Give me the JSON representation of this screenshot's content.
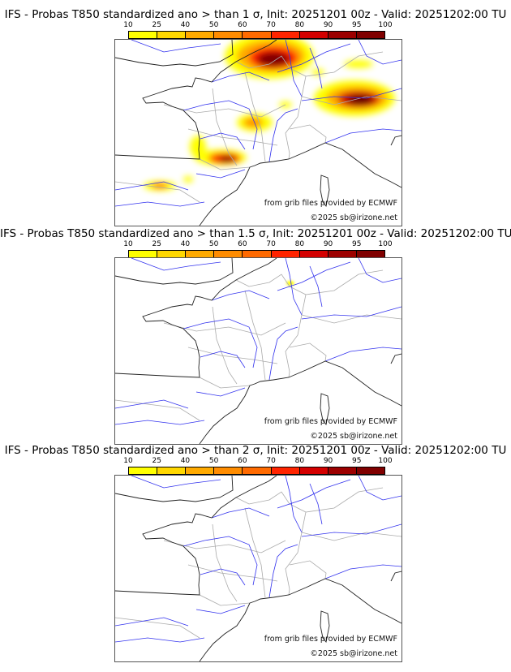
{
  "colorbar": {
    "ticks": [
      "10",
      "25",
      "40",
      "50",
      "60",
      "70",
      "80",
      "90",
      "95",
      "100"
    ],
    "colors": [
      "#ffff00",
      "#ffd700",
      "#ffaa00",
      "#ff8c00",
      "#ff6a00",
      "#ff2400",
      "#d40000",
      "#9c0000",
      "#800000",
      "#5c0000"
    ]
  },
  "panels": [
    {
      "title": "IFS - Probas T850  standardized ano > than 1 σ, Init: 20251201 00z - Valid: 20251202:00 TU"
    },
    {
      "title": "IFS - Probas T850  standardized ano > than 1.5 σ, Init: 20251201 00z - Valid: 20251202:00 TU"
    },
    {
      "title": "IFS - Probas T850  standardized ano > than 2 σ, Init: 20251201 00z - Valid: 20251202:00 TU"
    }
  ],
  "credits": {
    "source": "from grib files provided by ECMWF",
    "copyright": "©2025 sb@irizone.net"
  }
}
